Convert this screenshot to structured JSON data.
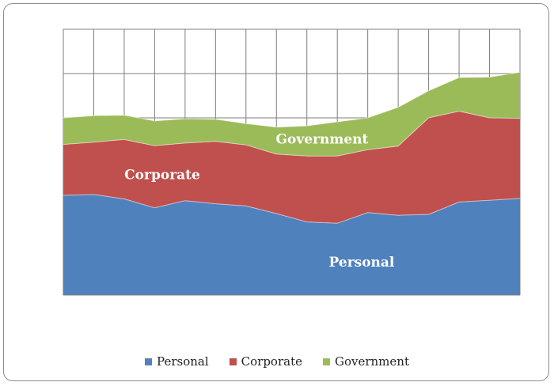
{
  "chart_data": {
    "type": "area",
    "stacked": true,
    "grid": true,
    "legend_position": "bottom",
    "x": [
      1,
      2,
      3,
      4,
      5,
      6,
      7,
      8,
      9,
      10,
      11,
      12,
      13,
      14,
      15,
      16
    ],
    "ylim": [
      0,
      6
    ],
    "series": [
      {
        "name": "Personal",
        "color": "#4f81bd",
        "values": [
          2.25,
          2.27,
          2.17,
          1.97,
          2.13,
          2.06,
          2.01,
          1.84,
          1.65,
          1.62,
          1.86,
          1.8,
          1.82,
          2.1,
          2.14,
          2.18
        ]
      },
      {
        "name": "Corporate",
        "color": "#c0504d",
        "values": [
          1.15,
          1.18,
          1.34,
          1.4,
          1.3,
          1.41,
          1.38,
          1.34,
          1.49,
          1.52,
          1.42,
          1.56,
          2.18,
          2.05,
          1.86,
          1.81
        ]
      },
      {
        "name": "Government",
        "color": "#9bbb59",
        "values": [
          0.6,
          0.6,
          0.55,
          0.56,
          0.55,
          0.5,
          0.48,
          0.61,
          0.68,
          0.77,
          0.72,
          0.88,
          0.61,
          0.76,
          0.92,
          1.04
        ]
      }
    ],
    "area_labels": [
      {
        "series": "Government",
        "text": "Government"
      },
      {
        "series": "Corporate",
        "text": "Corporate"
      },
      {
        "series": "Personal",
        "text": "Personal"
      }
    ]
  },
  "legend": {
    "items": [
      {
        "label": "Personal",
        "color": "#4f81bd"
      },
      {
        "label": "Corporate",
        "color": "#c0504d"
      },
      {
        "label": "Government",
        "color": "#9bbb59"
      }
    ]
  }
}
